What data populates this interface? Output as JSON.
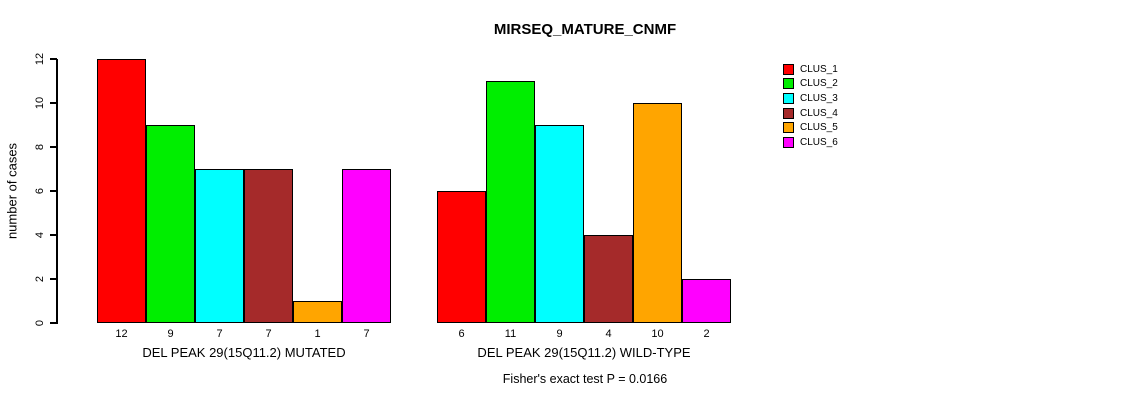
{
  "chart_data": {
    "type": "bar",
    "title": "MIRSEQ_MATURE_CNMF",
    "xlabel": "",
    "ylabel": "number of cases",
    "ylim": [
      0,
      12
    ],
    "yticks": [
      0,
      2,
      4,
      6,
      8,
      10,
      12
    ],
    "grid": false,
    "legend_position": "right",
    "clusters": [
      {
        "name": "CLUS_1",
        "color": "#FF0000"
      },
      {
        "name": "CLUS_2",
        "color": "#00EE00"
      },
      {
        "name": "CLUS_3",
        "color": "#00FFFF"
      },
      {
        "name": "CLUS_4",
        "color": "#A52A2A"
      },
      {
        "name": "CLUS_5",
        "color": "#FFA500"
      },
      {
        "name": "CLUS_6",
        "color": "#FF00FF"
      }
    ],
    "groups": [
      {
        "label": "DEL PEAK 29(15Q11.2) MUTATED",
        "values": [
          12,
          9,
          7,
          7,
          1,
          7
        ]
      },
      {
        "label": "DEL PEAK 29(15Q11.2) WILD-TYPE",
        "values": [
          6,
          11,
          9,
          4,
          10,
          2
        ]
      }
    ],
    "show_values_below_bars": true,
    "annotation": "Fisher's exact test P = 0.0166"
  }
}
